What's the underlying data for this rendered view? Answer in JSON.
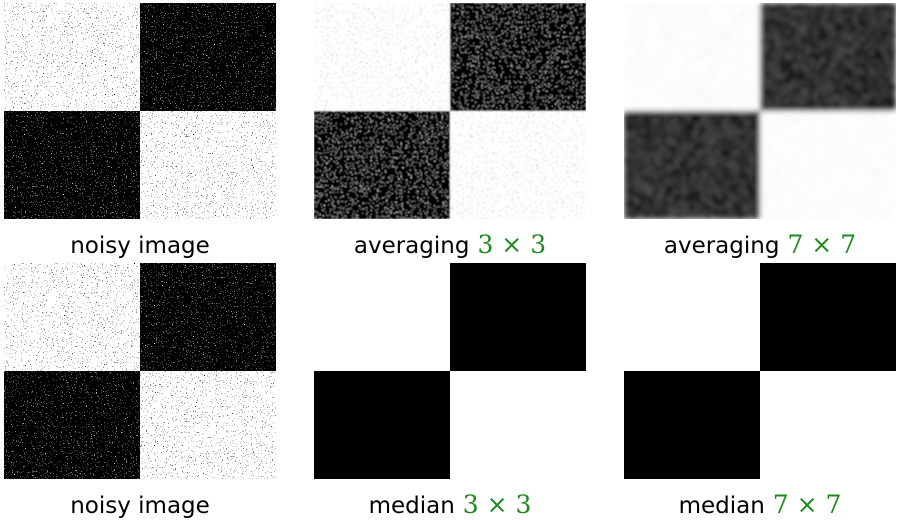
{
  "panels": [
    {
      "caption": "noisy image"
    },
    {
      "caption": "averaging",
      "kernel": "3 × 3"
    },
    {
      "caption": "averaging",
      "kernel": "7 × 7"
    },
    {
      "caption": "noisy image"
    },
    {
      "caption": "median",
      "kernel": "3 × 3"
    },
    {
      "caption": "median",
      "kernel": "7 × 7"
    }
  ]
}
